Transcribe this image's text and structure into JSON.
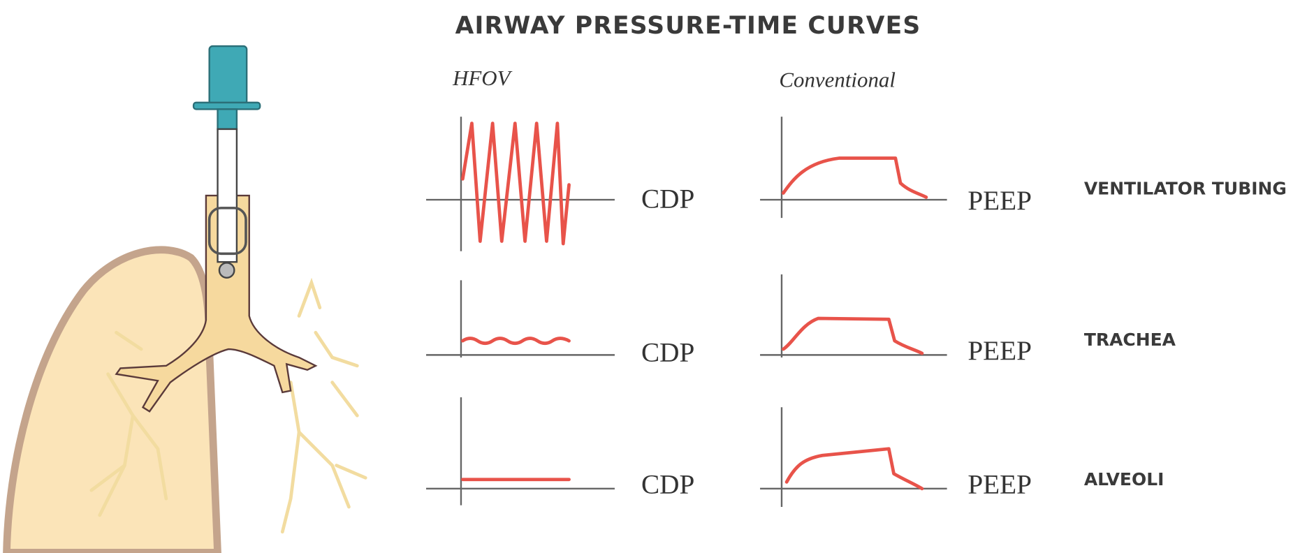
{
  "title": "AIRWAY PRESSURE-TIME CURVES",
  "columns": [
    "HFOV",
    "Conventional"
  ],
  "rows": [
    {
      "label": "VENTILATOR TUBING",
      "hfov_baseline": "CDP",
      "conventional_baseline": "PEEP"
    },
    {
      "label": "TRACHEA",
      "hfov_baseline": "CDP",
      "conventional_baseline": "PEEP"
    },
    {
      "label": "ALVEOLI",
      "hfov_baseline": "CDP",
      "conventional_baseline": "PEEP"
    }
  ]
}
